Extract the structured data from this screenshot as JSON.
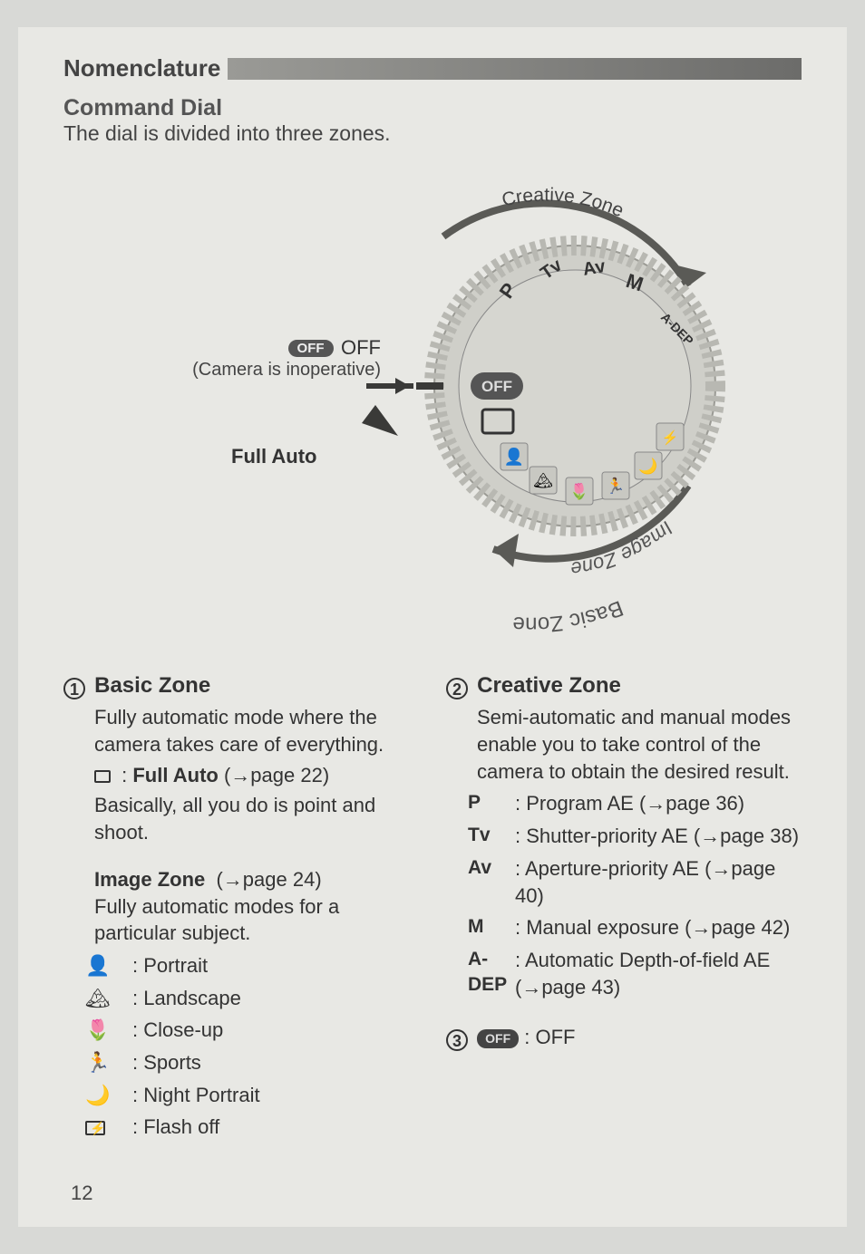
{
  "header": {
    "nomenclature": "Nomenclature",
    "command_dial": "Command Dial",
    "subtitle": "The dial is divided into three zones."
  },
  "diagram": {
    "creative_zone_arc": "Creative Zone",
    "image_zone_arc": "Image Zone",
    "basic_zone_arc": "Basic Zone",
    "off_pill": "OFF",
    "off_word": "OFF",
    "off_inop": "(Camera is inoperative)",
    "full_auto": "Full Auto",
    "dial_marks": [
      "P",
      "Tv",
      "Av",
      "M",
      "A-DEP"
    ],
    "colors": {
      "dial_body": "#cfcfc9",
      "dial_ridge": "#b8b8b2",
      "dial_center": "#d6d6d0",
      "arc_stroke": "#5a5a56",
      "off_pill_bg": "#555555",
      "arrow": "#3a3a38"
    }
  },
  "basic": {
    "num": "1",
    "title": "Basic Zone",
    "intro": "Fully automatic mode where the camera takes care of everything.",
    "full_auto_label": "Full Auto",
    "full_auto_page": "(→page 22)",
    "full_auto_desc": "Basically, all you do is point and shoot.",
    "image_zone_label": "Image Zone",
    "image_zone_page": "(→page 24)",
    "image_zone_desc": "Fully automatic modes for a particular subject.",
    "modes": [
      {
        "icon": "👤",
        "label": "Portrait"
      },
      {
        "icon": "🏔",
        "label": "Landscape"
      },
      {
        "icon": "🌷",
        "label": "Close-up"
      },
      {
        "icon": "🏃",
        "label": "Sports"
      },
      {
        "icon": "🌙",
        "label": "Night Portrait"
      },
      {
        "icon": "flash-off",
        "label": "Flash off"
      }
    ]
  },
  "creative": {
    "num": "2",
    "title": "Creative Zone",
    "intro": "Semi-automatic and manual modes enable you to take control of the camera to obtain the desired result.",
    "modes": [
      {
        "sym": "P",
        "label": "Program AE (→page 36)"
      },
      {
        "sym": "Tv",
        "label": "Shutter-priority AE (→page 38)"
      },
      {
        "sym": "Av",
        "label": "Aperture-priority AE (→page 40)"
      },
      {
        "sym": "M",
        "label": "Manual exposure (→page 42)"
      },
      {
        "sym": "A-DEP",
        "label": "Automatic Depth-of-field AE (→page 43)"
      }
    ]
  },
  "off": {
    "num": "3",
    "pill": "OFF",
    "label": "OFF"
  },
  "page_number": "12"
}
